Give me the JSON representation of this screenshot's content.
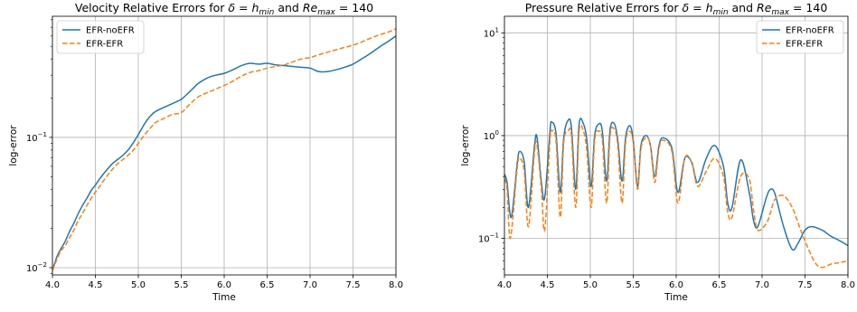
{
  "colors": {
    "series1": "#1f77b4",
    "series2": "#ff7f0e",
    "grid": "#b0b0b0"
  },
  "chart_data": [
    {
      "type": "line",
      "title": {
        "prefix": "Velocity Relative Errors for ",
        "delta": "δ",
        "eq1": " = ",
        "h": "h",
        "h_sub": "min",
        "and": " and ",
        "re": "Re",
        "re_sub": "max",
        "eq2": " = 140"
      },
      "xlabel": "Time",
      "ylabel": "log-error",
      "yscale": "log",
      "xlim": [
        4.0,
        8.0
      ],
      "ylim": [
        0.0088,
        0.85
      ],
      "xticks": [
        4.0,
        4.5,
        5.0,
        5.5,
        6.0,
        6.5,
        7.0,
        7.5,
        8.0
      ],
      "xtick_labels": [
        "4.0",
        "4.5",
        "5.0",
        "5.5",
        "6.0",
        "6.5",
        "7.0",
        "7.5",
        "8.0"
      ],
      "yticks": [
        0.01,
        0.1
      ],
      "ytick_labels": [
        {
          "base": "10",
          "exp": "−2"
        },
        {
          "base": "10",
          "exp": "−1"
        }
      ],
      "grid": true,
      "legend": "top-left",
      "series": [
        {
          "name": "EFR-noEFR",
          "style": "solid",
          "x": [
            4.0,
            4.05,
            4.1,
            4.15,
            4.2,
            4.25,
            4.3,
            4.35,
            4.4,
            4.45,
            4.5,
            4.55,
            4.6,
            4.65,
            4.7,
            4.75,
            4.8,
            4.85,
            4.9,
            4.95,
            5.0,
            5.05,
            5.1,
            5.15,
            5.2,
            5.3,
            5.4,
            5.5,
            5.6,
            5.7,
            5.8,
            5.9,
            6.0,
            6.1,
            6.2,
            6.3,
            6.4,
            6.5,
            6.6,
            6.7,
            6.8,
            6.9,
            7.0,
            7.1,
            7.2,
            7.3,
            7.4,
            7.5,
            7.6,
            7.7,
            7.8,
            7.9,
            8.0
          ],
          "y": [
            0.0095,
            0.012,
            0.014,
            0.016,
            0.019,
            0.022,
            0.026,
            0.03,
            0.034,
            0.039,
            0.043,
            0.048,
            0.053,
            0.058,
            0.063,
            0.067,
            0.071,
            0.076,
            0.083,
            0.093,
            0.105,
            0.12,
            0.135,
            0.148,
            0.158,
            0.17,
            0.182,
            0.196,
            0.225,
            0.26,
            0.285,
            0.3,
            0.31,
            0.33,
            0.355,
            0.37,
            0.365,
            0.37,
            0.36,
            0.355,
            0.35,
            0.345,
            0.34,
            0.32,
            0.32,
            0.33,
            0.345,
            0.365,
            0.4,
            0.44,
            0.49,
            0.54,
            0.6
          ]
        },
        {
          "name": "EFR-EFR",
          "style": "dashed",
          "x": [
            4.0,
            4.05,
            4.1,
            4.15,
            4.2,
            4.25,
            4.3,
            4.35,
            4.4,
            4.45,
            4.5,
            4.55,
            4.6,
            4.65,
            4.7,
            4.75,
            4.8,
            4.85,
            4.9,
            4.95,
            5.0,
            5.05,
            5.1,
            5.15,
            5.2,
            5.3,
            5.4,
            5.5,
            5.6,
            5.7,
            5.8,
            5.9,
            6.0,
            6.1,
            6.2,
            6.3,
            6.4,
            6.5,
            6.6,
            6.7,
            6.8,
            6.9,
            7.0,
            7.1,
            7.2,
            7.3,
            7.4,
            7.5,
            7.6,
            7.7,
            7.8,
            7.9,
            8.0
          ],
          "y": [
            0.0095,
            0.0115,
            0.0135,
            0.0148,
            0.017,
            0.0195,
            0.023,
            0.026,
            0.03,
            0.034,
            0.038,
            0.042,
            0.047,
            0.052,
            0.057,
            0.062,
            0.066,
            0.07,
            0.075,
            0.081,
            0.09,
            0.1,
            0.11,
            0.12,
            0.13,
            0.14,
            0.15,
            0.155,
            0.18,
            0.205,
            0.22,
            0.235,
            0.25,
            0.27,
            0.295,
            0.315,
            0.325,
            0.34,
            0.35,
            0.36,
            0.38,
            0.4,
            0.41,
            0.43,
            0.45,
            0.47,
            0.49,
            0.51,
            0.54,
            0.575,
            0.61,
            0.64,
            0.68
          ]
        }
      ]
    },
    {
      "type": "line",
      "title": {
        "prefix": "Pressure Relative Errors for ",
        "delta": "δ",
        "eq1": " = ",
        "h": "h",
        "h_sub": "min",
        "and": " and ",
        "re": "Re",
        "re_sub": "max",
        "eq2": " = 140"
      },
      "xlabel": "Time",
      "ylabel": "log-error",
      "yscale": "log",
      "xlim": [
        4.0,
        8.0
      ],
      "ylim": [
        0.044,
        14.5
      ],
      "xticks": [
        4.0,
        4.5,
        5.0,
        5.5,
        6.0,
        6.5,
        7.0,
        7.5,
        8.0
      ],
      "xtick_labels": [
        "4.0",
        "4.5",
        "5.0",
        "5.5",
        "6.0",
        "6.5",
        "7.0",
        "7.5",
        "8.0"
      ],
      "yticks": [
        0.1,
        1,
        10
      ],
      "ytick_labels": [
        {
          "base": "10",
          "exp": "−1"
        },
        {
          "base": "10",
          "exp": "0"
        },
        {
          "base": "10",
          "exp": "1"
        }
      ],
      "grid": true,
      "legend": "top-right",
      "series": [
        {
          "name": "EFR-noEFR",
          "style": "solid",
          "x": [
            4.0,
            4.03,
            4.08,
            4.15,
            4.18,
            4.23,
            4.28,
            4.35,
            4.38,
            4.43,
            4.47,
            4.53,
            4.55,
            4.6,
            4.65,
            4.69,
            4.74,
            4.78,
            4.83,
            4.87,
            4.92,
            4.96,
            5.01,
            5.05,
            5.1,
            5.14,
            5.19,
            5.23,
            5.28,
            5.32,
            5.37,
            5.41,
            5.46,
            5.5,
            5.55,
            5.59,
            5.65,
            5.7,
            5.75,
            5.8,
            5.85,
            5.95,
            6.02,
            6.1,
            6.18,
            6.25,
            6.35,
            6.45,
            6.55,
            6.6,
            6.65,
            6.75,
            6.85,
            6.9,
            6.95,
            7.05,
            7.1,
            7.15,
            7.25,
            7.35,
            7.42,
            7.5,
            7.58,
            7.7,
            7.8,
            7.9,
            8.0
          ],
          "y": [
            0.42,
            0.35,
            0.16,
            0.55,
            0.7,
            0.55,
            0.2,
            0.8,
            0.95,
            0.35,
            0.25,
            1.1,
            1.35,
            1.05,
            0.28,
            0.95,
            1.4,
            1.2,
            0.3,
            1.3,
            1.3,
            0.9,
            0.32,
            1.0,
            1.3,
            1.1,
            0.36,
            1.15,
            1.3,
            0.9,
            0.36,
            0.95,
            1.25,
            0.9,
            0.32,
            0.8,
            1.0,
            0.8,
            0.4,
            0.8,
            0.95,
            0.75,
            0.28,
            0.6,
            0.55,
            0.35,
            0.6,
            0.8,
            0.5,
            0.22,
            0.2,
            0.58,
            0.28,
            0.15,
            0.13,
            0.25,
            0.3,
            0.27,
            0.13,
            0.078,
            0.09,
            0.12,
            0.13,
            0.12,
            0.105,
            0.095,
            0.085
          ]
        },
        {
          "name": "EFR-EFR",
          "style": "dashed",
          "x": [
            4.0,
            4.03,
            4.07,
            4.15,
            4.18,
            4.23,
            4.28,
            4.35,
            4.38,
            4.43,
            4.47,
            4.53,
            4.55,
            4.6,
            4.65,
            4.69,
            4.74,
            4.78,
            4.83,
            4.87,
            4.92,
            4.96,
            5.01,
            5.05,
            5.1,
            5.14,
            5.19,
            5.23,
            5.28,
            5.32,
            5.37,
            5.41,
            5.46,
            5.5,
            5.55,
            5.59,
            5.65,
            5.7,
            5.75,
            5.8,
            5.85,
            5.95,
            6.02,
            6.1,
            6.18,
            6.25,
            6.35,
            6.45,
            6.55,
            6.6,
            6.65,
            6.75,
            6.85,
            6.9,
            6.95,
            7.05,
            7.1,
            7.15,
            7.25,
            7.35,
            7.45,
            7.55,
            7.63,
            7.7,
            7.8,
            7.9,
            8.0
          ],
          "y": [
            0.38,
            0.3,
            0.1,
            0.5,
            0.6,
            0.45,
            0.13,
            0.7,
            0.8,
            0.3,
            0.12,
            0.9,
            1.1,
            0.9,
            0.16,
            0.85,
            1.1,
            1.0,
            0.2,
            1.1,
            1.1,
            0.7,
            0.2,
            0.9,
            1.1,
            0.9,
            0.22,
            1.0,
            1.15,
            0.8,
            0.22,
            0.85,
            1.1,
            0.85,
            0.3,
            0.75,
            0.95,
            0.8,
            0.35,
            0.75,
            0.9,
            0.7,
            0.22,
            0.6,
            0.55,
            0.32,
            0.45,
            0.6,
            0.4,
            0.18,
            0.16,
            0.4,
            0.38,
            0.19,
            0.12,
            0.14,
            0.18,
            0.24,
            0.26,
            0.2,
            0.12,
            0.075,
            0.056,
            0.052,
            0.056,
            0.058,
            0.06
          ]
        }
      ]
    }
  ]
}
